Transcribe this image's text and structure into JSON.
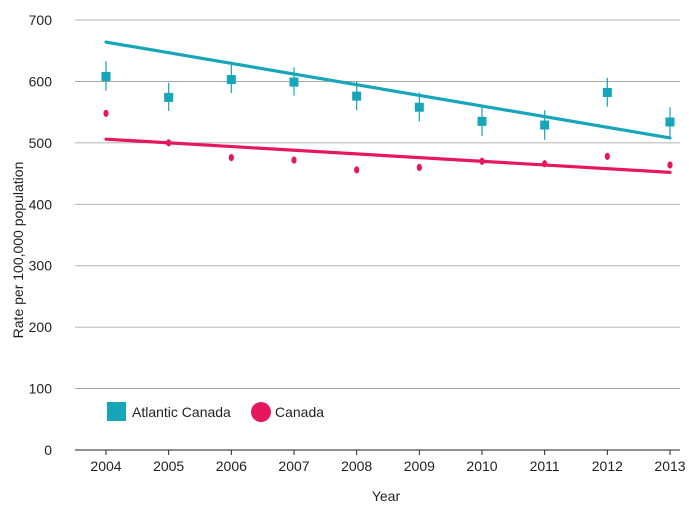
{
  "chart_data": {
    "type": "scatter",
    "title": "",
    "xlabel": "Year",
    "ylabel": "Rate per 100,000 population",
    "x": [
      2004,
      2005,
      2006,
      2007,
      2008,
      2009,
      2010,
      2011,
      2012,
      2013
    ],
    "xticks": [
      "2004",
      "2005",
      "2006",
      "2007",
      "2008",
      "2009",
      "2010",
      "2011",
      "2012",
      "2013"
    ],
    "ylim": [
      0,
      700
    ],
    "yticks": [
      "0",
      "100",
      "200",
      "300",
      "400",
      "500",
      "600",
      "700"
    ],
    "grid": "horizontal",
    "legend_position": "bottom-left",
    "series": [
      {
        "name": "Atlantic Canada",
        "color": "#16a5b9",
        "marker": "square",
        "values": [
          608,
          574,
          603,
          599,
          576,
          558,
          535,
          529,
          582,
          534
        ],
        "ci_low": [
          585,
          552,
          581,
          577,
          553,
          535,
          511,
          505,
          559,
          510
        ],
        "ci_high": [
          633,
          598,
          627,
          623,
          600,
          582,
          559,
          553,
          606,
          558
        ],
        "trend": [
          664,
          508
        ]
      },
      {
        "name": "Canada",
        "color": "#e4185b",
        "marker": "circle",
        "values": [
          548,
          500,
          476,
          472,
          456,
          460,
          470,
          466,
          478,
          464
        ],
        "ci_low": [
          543,
          495,
          471,
          467,
          451,
          455,
          465,
          461,
          473,
          459
        ],
        "ci_high": [
          553,
          505,
          481,
          477,
          461,
          465,
          475,
          471,
          483,
          469
        ],
        "trend": [
          506,
          452
        ]
      }
    ]
  }
}
